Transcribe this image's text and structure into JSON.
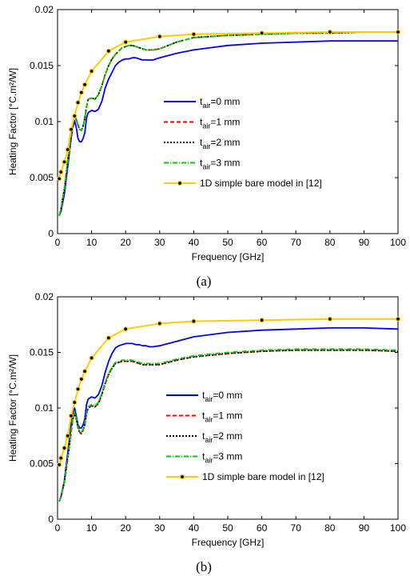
{
  "chart_data": [
    {
      "type": "line",
      "panel_label": "(a)",
      "xlabel": "Frequency [GHz]",
      "ylabel": "Heating Factor [°C.m²/W]",
      "xlim": [
        0,
        100
      ],
      "ylim": [
        0,
        0.02
      ],
      "xticks": [
        "0",
        "10",
        "20",
        "30",
        "40",
        "50",
        "60",
        "70",
        "80",
        "90",
        "100"
      ],
      "yticks": [
        "0",
        "0.005",
        "0.01",
        "0.015",
        "0.02"
      ],
      "grid": false,
      "legend_position": "center",
      "series": [
        {
          "name": "t_air=0 mm",
          "sub": "air",
          "label_prefix": "t",
          "label_suffix": "=0 mm",
          "color": "#0000ff",
          "dash": "solid",
          "marker": false,
          "x": [
            0.5,
            1,
            2,
            3,
            4,
            4.5,
            5,
            5.5,
            6,
            6.5,
            7,
            7.5,
            8,
            8.5,
            9,
            10,
            11,
            12,
            13,
            14,
            15,
            16,
            17,
            18,
            19,
            20,
            21,
            22,
            23,
            24,
            25,
            26,
            27,
            28,
            30,
            35,
            40,
            50,
            60,
            70,
            80,
            90,
            100
          ],
          "y": [
            0.0016,
            0.002,
            0.0035,
            0.006,
            0.0085,
            0.0095,
            0.0101,
            0.0095,
            0.0085,
            0.0082,
            0.0082,
            0.0085,
            0.009,
            0.0103,
            0.0108,
            0.011,
            0.0109,
            0.0111,
            0.0118,
            0.013,
            0.0138,
            0.0144,
            0.015,
            0.0153,
            0.0155,
            0.0156,
            0.0156,
            0.0157,
            0.0157,
            0.0156,
            0.0155,
            0.0155,
            0.0155,
            0.0155,
            0.0157,
            0.0161,
            0.0164,
            0.0168,
            0.017,
            0.0171,
            0.0172,
            0.0172,
            0.0172
          ]
        },
        {
          "name": "t_air=1 mm",
          "sub": "air",
          "label_prefix": "t",
          "label_suffix": "=1 mm",
          "color": "#ff0000",
          "dash": "5,3",
          "marker": false,
          "x": [
            0.5,
            1,
            2,
            3,
            4,
            4.5,
            5,
            5.5,
            6,
            6.5,
            7,
            7.5,
            8,
            8.5,
            9,
            10,
            11,
            12,
            13,
            14,
            15,
            16,
            17,
            18,
            19,
            20,
            21,
            22,
            23,
            24,
            25,
            26,
            27,
            28,
            30,
            35,
            40,
            50,
            60,
            70,
            80,
            90,
            100
          ],
          "y": [
            0.0016,
            0.0022,
            0.004,
            0.0065,
            0.0088,
            0.0098,
            0.0105,
            0.0102,
            0.0097,
            0.0093,
            0.0092,
            0.0096,
            0.0103,
            0.0113,
            0.012,
            0.0121,
            0.012,
            0.0124,
            0.0132,
            0.0142,
            0.015,
            0.0156,
            0.016,
            0.0163,
            0.0166,
            0.0167,
            0.0168,
            0.0168,
            0.0167,
            0.0166,
            0.0165,
            0.0164,
            0.0164,
            0.0164,
            0.0165,
            0.0171,
            0.0175,
            0.0177,
            0.0178,
            0.0179,
            0.0179,
            0.018,
            0.018
          ]
        },
        {
          "name": "t_air=2 mm",
          "sub": "air",
          "label_prefix": "t",
          "label_suffix": "=2 mm",
          "color": "#000000",
          "dash": "2,2",
          "marker": false,
          "x": [
            0.5,
            1,
            2,
            3,
            4,
            4.5,
            5,
            5.5,
            6,
            6.5,
            7,
            7.5,
            8,
            8.5,
            9,
            10,
            11,
            12,
            13,
            14,
            15,
            16,
            17,
            18,
            19,
            20,
            21,
            22,
            23,
            24,
            25,
            26,
            27,
            28,
            30,
            35,
            40,
            50,
            60,
            70,
            80,
            90,
            100
          ],
          "y": [
            0.0016,
            0.0022,
            0.004,
            0.0065,
            0.0088,
            0.0098,
            0.0105,
            0.0102,
            0.0097,
            0.0093,
            0.0092,
            0.0096,
            0.0103,
            0.0113,
            0.012,
            0.0121,
            0.012,
            0.0124,
            0.0132,
            0.0142,
            0.015,
            0.0156,
            0.016,
            0.0163,
            0.0166,
            0.0167,
            0.0168,
            0.0168,
            0.0167,
            0.0166,
            0.0165,
            0.0164,
            0.0164,
            0.0164,
            0.0165,
            0.0171,
            0.0175,
            0.0177,
            0.0178,
            0.0179,
            0.0179,
            0.018,
            0.018
          ]
        },
        {
          "name": "t_air=3 mm",
          "sub": "air",
          "label_prefix": "t",
          "label_suffix": "=3 mm",
          "color": "#00cc00",
          "dash": "6,2,1,2",
          "marker": false,
          "x": [
            0.5,
            1,
            2,
            3,
            4,
            4.5,
            5,
            5.5,
            6,
            6.5,
            7,
            7.5,
            8,
            8.5,
            9,
            10,
            11,
            12,
            13,
            14,
            15,
            16,
            17,
            18,
            19,
            20,
            21,
            22,
            23,
            24,
            25,
            26,
            27,
            28,
            30,
            35,
            40,
            50,
            60,
            70,
            80,
            90,
            100
          ],
          "y": [
            0.0016,
            0.0022,
            0.004,
            0.0065,
            0.0088,
            0.0098,
            0.0105,
            0.0102,
            0.0097,
            0.0093,
            0.0092,
            0.0096,
            0.0103,
            0.0113,
            0.012,
            0.0121,
            0.012,
            0.0124,
            0.0132,
            0.0142,
            0.015,
            0.0156,
            0.016,
            0.0163,
            0.0166,
            0.0167,
            0.0168,
            0.0168,
            0.0167,
            0.0166,
            0.0165,
            0.0164,
            0.0164,
            0.0164,
            0.0165,
            0.0171,
            0.0175,
            0.0177,
            0.0178,
            0.0179,
            0.0179,
            0.018,
            0.018
          ]
        },
        {
          "name": "1D simple bare model in [12]",
          "color": "#ffcc00",
          "dash": "solid",
          "marker": true,
          "x": [
            0.5,
            1,
            2,
            3,
            4,
            5,
            6,
            7,
            8,
            10,
            15,
            20,
            30,
            40,
            60,
            80,
            100
          ],
          "y": [
            0.0049,
            0.0055,
            0.0064,
            0.0075,
            0.0093,
            0.0105,
            0.0117,
            0.0126,
            0.0133,
            0.0145,
            0.0163,
            0.0171,
            0.0176,
            0.0178,
            0.0179,
            0.018,
            0.018
          ]
        }
      ]
    },
    {
      "type": "line",
      "panel_label": "(b)",
      "xlabel": "Frequency [GHz]",
      "ylabel": "Heating Factor [°C.m²/W]",
      "xlim": [
        0,
        100
      ],
      "ylim": [
        0,
        0.02
      ],
      "xticks": [
        "0",
        "10",
        "20",
        "30",
        "40",
        "50",
        "60",
        "70",
        "80",
        "90",
        "100"
      ],
      "yticks": [
        "0",
        "0.005",
        "0.01",
        "0.015",
        "0.02"
      ],
      "grid": false,
      "legend_position": "center-right",
      "series": [
        {
          "name": "t_air=0 mm",
          "sub": "air",
          "label_prefix": "t",
          "label_suffix": "=0 mm",
          "color": "#0000ff",
          "dash": "solid",
          "marker": false,
          "x": [
            0.5,
            1,
            2,
            3,
            4,
            4.5,
            5,
            5.5,
            6,
            6.5,
            7,
            7.5,
            8,
            8.5,
            9,
            10,
            11,
            12,
            13,
            14,
            15,
            16,
            17,
            18,
            19,
            20,
            21,
            22,
            23,
            24,
            25,
            26,
            27,
            28,
            30,
            35,
            40,
            50,
            60,
            70,
            80,
            90,
            100
          ],
          "y": [
            0.0016,
            0.002,
            0.0035,
            0.006,
            0.0085,
            0.0095,
            0.01,
            0.0093,
            0.0085,
            0.0082,
            0.0082,
            0.0085,
            0.009,
            0.0103,
            0.0108,
            0.011,
            0.0109,
            0.0112,
            0.012,
            0.0132,
            0.0142,
            0.0149,
            0.0154,
            0.0156,
            0.0157,
            0.0158,
            0.0158,
            0.0158,
            0.0157,
            0.0157,
            0.0156,
            0.0156,
            0.0155,
            0.0155,
            0.0156,
            0.016,
            0.0164,
            0.0168,
            0.017,
            0.0171,
            0.0172,
            0.0172,
            0.0171
          ]
        },
        {
          "name": "t_air=1 mm",
          "sub": "air",
          "label_prefix": "t",
          "label_suffix": "=1 mm",
          "color": "#ff0000",
          "dash": "5,3",
          "marker": false,
          "x": [
            0.5,
            1,
            2,
            3,
            4,
            4.5,
            5,
            5.5,
            6,
            6.5,
            7,
            7.5,
            8,
            8.5,
            9,
            10,
            11,
            12,
            13,
            14,
            15,
            16,
            17,
            18,
            19,
            20,
            21,
            22,
            23,
            24,
            25,
            26,
            27,
            28,
            30,
            35,
            40,
            50,
            60,
            70,
            80,
            90,
            100
          ],
          "y": [
            0.0016,
            0.002,
            0.0033,
            0.0055,
            0.0078,
            0.009,
            0.0096,
            0.009,
            0.0082,
            0.0078,
            0.0077,
            0.008,
            0.0085,
            0.0095,
            0.01,
            0.0102,
            0.0101,
            0.0104,
            0.0112,
            0.0122,
            0.013,
            0.0136,
            0.014,
            0.0141,
            0.0142,
            0.0142,
            0.0142,
            0.0142,
            0.0141,
            0.014,
            0.0139,
            0.0139,
            0.0139,
            0.0139,
            0.0139,
            0.0143,
            0.0146,
            0.0149,
            0.0151,
            0.0152,
            0.0152,
            0.0152,
            0.0151
          ]
        },
        {
          "name": "t_air=2 mm",
          "sub": "air",
          "label_prefix": "t",
          "label_suffix": "=2 mm",
          "color": "#000000",
          "dash": "2,2",
          "marker": false,
          "x": [
            0.5,
            1,
            2,
            3,
            4,
            4.5,
            5,
            5.5,
            6,
            6.5,
            7,
            7.5,
            8,
            8.5,
            9,
            10,
            11,
            12,
            13,
            14,
            15,
            16,
            17,
            18,
            19,
            20,
            21,
            22,
            23,
            24,
            25,
            26,
            27,
            28,
            30,
            35,
            40,
            50,
            60,
            70,
            80,
            90,
            100
          ],
          "y": [
            0.0016,
            0.002,
            0.0033,
            0.0055,
            0.0078,
            0.009,
            0.0096,
            0.009,
            0.0082,
            0.0078,
            0.0077,
            0.008,
            0.0085,
            0.0095,
            0.01,
            0.0102,
            0.0101,
            0.0104,
            0.0112,
            0.0122,
            0.013,
            0.0136,
            0.014,
            0.0141,
            0.0142,
            0.0142,
            0.0142,
            0.0142,
            0.0141,
            0.014,
            0.0139,
            0.0139,
            0.0139,
            0.0139,
            0.0139,
            0.0143,
            0.0146,
            0.0149,
            0.0151,
            0.0152,
            0.0152,
            0.0152,
            0.0151
          ]
        },
        {
          "name": "t_air=3 mm",
          "sub": "air",
          "label_prefix": "t",
          "label_suffix": "=3 mm",
          "color": "#00cc00",
          "dash": "6,2,1,2",
          "marker": false,
          "x": [
            0.5,
            1,
            2,
            3,
            4,
            4.5,
            5,
            5.5,
            6,
            6.5,
            7,
            7.5,
            8,
            8.5,
            9,
            10,
            11,
            12,
            13,
            14,
            15,
            16,
            17,
            18,
            19,
            20,
            21,
            22,
            23,
            24,
            25,
            26,
            27,
            28,
            30,
            35,
            40,
            50,
            60,
            70,
            80,
            90,
            100
          ],
          "y": [
            0.0016,
            0.002,
            0.0034,
            0.0056,
            0.0079,
            0.0091,
            0.0097,
            0.0091,
            0.0083,
            0.0079,
            0.0078,
            0.0081,
            0.0086,
            0.0096,
            0.0101,
            0.0103,
            0.0102,
            0.0105,
            0.0113,
            0.0123,
            0.0131,
            0.0137,
            0.0141,
            0.0142,
            0.0143,
            0.0143,
            0.0143,
            0.0143,
            0.0142,
            0.0141,
            0.014,
            0.014,
            0.014,
            0.014,
            0.014,
            0.0144,
            0.0147,
            0.015,
            0.0152,
            0.0153,
            0.0153,
            0.0153,
            0.0152
          ]
        },
        {
          "name": "1D simple bare model in [12]",
          "color": "#ffcc00",
          "dash": "solid",
          "marker": true,
          "x": [
            0.5,
            1,
            2,
            3,
            4,
            5,
            6,
            7,
            8,
            10,
            15,
            20,
            30,
            40,
            60,
            80,
            100
          ],
          "y": [
            0.0049,
            0.0055,
            0.0064,
            0.0075,
            0.0093,
            0.0105,
            0.0117,
            0.0126,
            0.0133,
            0.0145,
            0.0163,
            0.0171,
            0.0176,
            0.0178,
            0.0179,
            0.018,
            0.018
          ]
        }
      ]
    }
  ]
}
